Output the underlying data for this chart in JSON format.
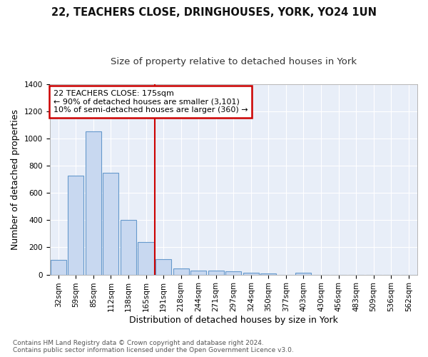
{
  "title_line1": "22, TEACHERS CLOSE, DRINGHOUSES, YORK, YO24 1UN",
  "title_line2": "Size of property relative to detached houses in York",
  "xlabel": "Distribution of detached houses by size in York",
  "ylabel": "Number of detached properties",
  "categories": [
    "32sqm",
    "59sqm",
    "85sqm",
    "112sqm",
    "138sqm",
    "165sqm",
    "191sqm",
    "218sqm",
    "244sqm",
    "271sqm",
    "297sqm",
    "324sqm",
    "350sqm",
    "377sqm",
    "403sqm",
    "430sqm",
    "456sqm",
    "483sqm",
    "509sqm",
    "536sqm",
    "562sqm"
  ],
  "values": [
    110,
    725,
    1050,
    750,
    400,
    240,
    115,
    47,
    28,
    30,
    22,
    15,
    8,
    0,
    12,
    0,
    0,
    0,
    0,
    0,
    0
  ],
  "bar_color": "#c8d8f0",
  "bar_edge_color": "#6699cc",
  "vline_color": "#cc0000",
  "annotation_text": "22 TEACHERS CLOSE: 175sqm\n← 90% of detached houses are smaller (3,101)\n10% of semi-detached houses are larger (360) →",
  "annotation_box_color": "#cc0000",
  "ylim": [
    0,
    1400
  ],
  "yticks": [
    0,
    200,
    400,
    600,
    800,
    1000,
    1200,
    1400
  ],
  "plot_bg_color": "#e8eef8",
  "fig_bg_color": "#ffffff",
  "grid_color": "#ffffff",
  "footer": "Contains HM Land Registry data © Crown copyright and database right 2024.\nContains public sector information licensed under the Open Government Licence v3.0.",
  "title_fontsize": 10.5,
  "subtitle_fontsize": 9.5,
  "axis_label_fontsize": 9,
  "tick_fontsize": 7.5,
  "footer_fontsize": 6.5,
  "annot_fontsize": 8
}
